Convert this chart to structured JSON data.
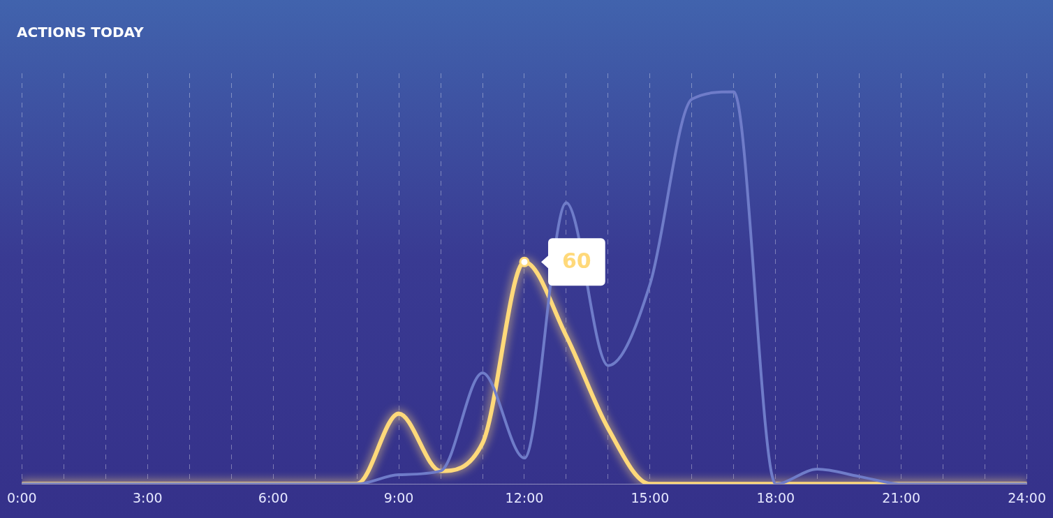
{
  "chart_data": {
    "type": "line",
    "title": "ACTIONS TODAY",
    "x": [
      0,
      1,
      2,
      3,
      4,
      5,
      6,
      7,
      8,
      9,
      10,
      11,
      12,
      13,
      14,
      15,
      16,
      17,
      18,
      19,
      20,
      21,
      22,
      23,
      24
    ],
    "series": [
      {
        "color": "#6f7cc9",
        "values": [
          0,
          0,
          0,
          0,
          0,
          0,
          0,
          0,
          0,
          2.5,
          3.5,
          30,
          7,
          76,
          32,
          54,
          104,
          106,
          0,
          4,
          2,
          0,
          0,
          0,
          0
        ]
      },
      {
        "color": "#ffd97a",
        "values": [
          0,
          0,
          0,
          0,
          0,
          0,
          0,
          0,
          0,
          19,
          3.5,
          11,
          60,
          40,
          15,
          0,
          0,
          0,
          0,
          0,
          0,
          0,
          0,
          0,
          0
        ],
        "value_labels": [
          null,
          null,
          null,
          null,
          null,
          null,
          null,
          null,
          null,
          null,
          null,
          null,
          "60",
          null,
          null,
          null,
          null,
          null,
          null,
          null,
          null,
          null,
          null,
          null,
          null
        ]
      }
    ],
    "xlim": [
      0,
      24
    ],
    "xticks": [
      {
        "value": 0,
        "label": "0:00"
      },
      {
        "value": 1,
        "label": null
      },
      {
        "value": 2,
        "label": null
      },
      {
        "value": 3,
        "label": "3:00"
      },
      {
        "value": 4,
        "label": null
      },
      {
        "value": 5,
        "label": null
      },
      {
        "value": 6,
        "label": "6:00"
      },
      {
        "value": 7,
        "label": null
      },
      {
        "value": 8,
        "label": null
      },
      {
        "value": 9,
        "label": "9:00"
      },
      {
        "value": 10,
        "label": null
      },
      {
        "value": 11,
        "label": null
      },
      {
        "value": 12,
        "label": "12:00"
      },
      {
        "value": 13,
        "label": null
      },
      {
        "value": 14,
        "label": null
      },
      {
        "value": 15,
        "label": "15:00"
      },
      {
        "value": 16,
        "label": null
      },
      {
        "value": 17,
        "label": null
      },
      {
        "value": 18,
        "label": "18:00"
      },
      {
        "value": 19,
        "label": null
      },
      {
        "value": 20,
        "label": null
      },
      {
        "value": 21,
        "label": "21:00"
      },
      {
        "value": 22,
        "label": null
      },
      {
        "value": 23,
        "label": null
      },
      {
        "value": 24,
        "label": "24:00"
      }
    ],
    "ylim": [
      0,
      111
    ],
    "grid": "x",
    "tick_labels": "x"
  }
}
